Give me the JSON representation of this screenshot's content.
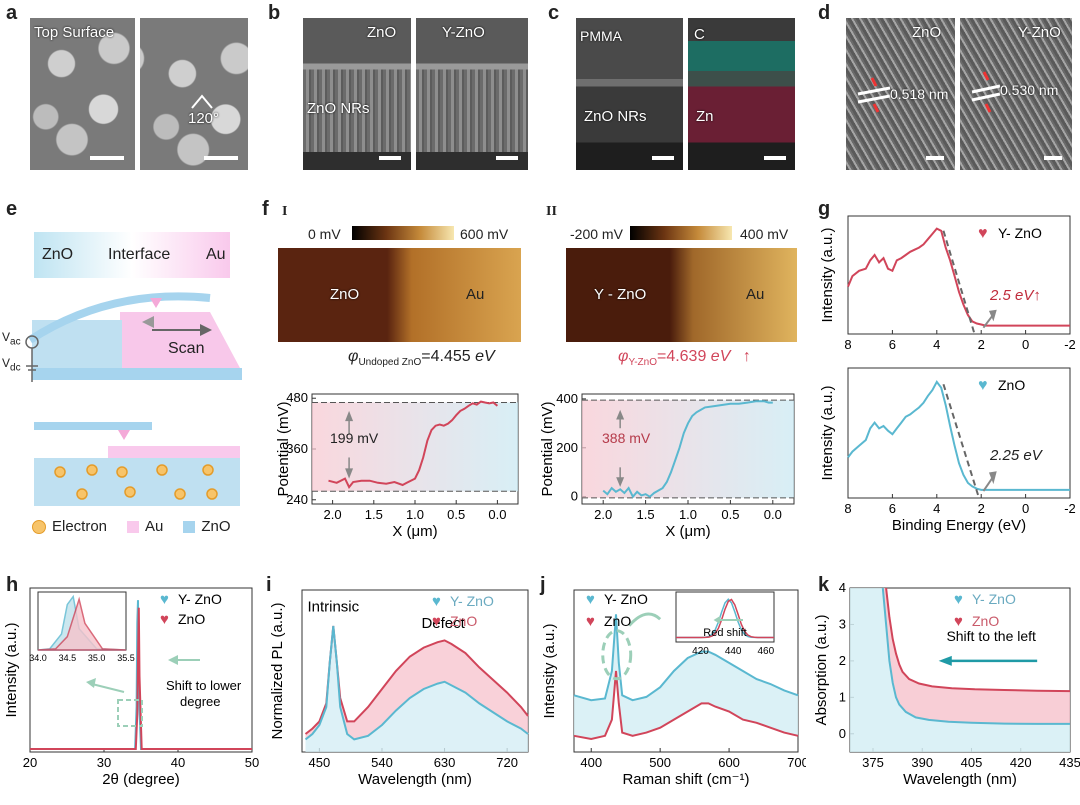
{
  "panel_labels": {
    "a": "a",
    "b": "b",
    "c": "c",
    "d": "d",
    "e": "e",
    "f": "f",
    "g": "g",
    "h": "h",
    "i": "i",
    "j": "j",
    "k": "k"
  },
  "panel_a": {
    "label_top_surface": "Top Surface",
    "angle": "120°"
  },
  "panel_b": {
    "label_zno": "ZnO",
    "label_yzno": "Y-ZnO",
    "label_nrs": "ZnO NRs"
  },
  "panel_c": {
    "label_pmma": "PMMA",
    "label_c": "C",
    "label_nrs": "ZnO NRs",
    "label_zn": "Zn"
  },
  "panel_d": {
    "label_zno": "ZnO",
    "label_yzno": "Y-ZnO",
    "spacing_zno": "0.518 nm",
    "spacing_yzno": "0.530 nm"
  },
  "panel_e": {
    "band_zno": "ZnO",
    "band_interface": "Interface",
    "band_au": "Au",
    "vac": "V",
    "vac_sub": "ac",
    "vdc": "V",
    "vdc_sub": "dc",
    "scan": "Scan",
    "legend_electron": "Electron",
    "legend_au": "Au",
    "legend_zno": "ZnO"
  },
  "panel_f": {
    "sub1": "I",
    "sub2": "II",
    "cb1_min": "0 mV",
    "cb1_max": "600 mV",
    "cb2_min": "-200 mV",
    "cb2_max": "400 mV",
    "map1_left": "ZnO",
    "map1_right": "Au",
    "map2_left": "Y - ZnO",
    "map2_right": "Au",
    "phi1_sym": "φ",
    "phi1_sub": "Undoped ZnO",
    "phi1_val": "=4.455 ",
    "phi1_unit": "eV",
    "phi2_sym": "φ",
    "phi2_sub": "Y-ZnO",
    "phi2_val": "=4.639 ",
    "phi2_unit": "eV",
    "phi2_arrow": "↑",
    "ylabel": "Potential (mV)",
    "xlabel": "X (μm)",
    "annot1": "199 mV",
    "annot2": "388 mV",
    "accent_red": "#d1455a",
    "accent_teal": "#5ab8d0"
  },
  "panel_g": {
    "legend_top": "Y- ZnO",
    "legend_bottom": "ZnO",
    "annot_top": "2.5 eV↑",
    "annot_bottom": "2.25 eV",
    "ylabel": "Intensity (a.u.)",
    "xlabel": "Binding Energy (eV)",
    "heart": "♥"
  },
  "panel_h": {
    "legend1": "Y- ZnO",
    "legend2": "ZnO",
    "annot": "Shift to lower degree",
    "annot_line1": "Shift to lower",
    "annot_line2": "degree",
    "ylabel": "Intensity (a.u.)",
    "xlabel": "2θ (degree)",
    "heart": "♥"
  },
  "panel_i": {
    "legend1": "Y- ZnO",
    "legend2": "ZnO",
    "annot_intrinsic": "Intrinsic",
    "annot_defect": "Defect",
    "ylabel": "Normalized PL (a.u.)",
    "xlabel": "Wavelength (nm)",
    "heart": "♥"
  },
  "panel_j": {
    "legend1": "Y- ZnO",
    "legend2": "ZnO",
    "annot_red": "Red shift",
    "ylabel": "Intensity (a.u.)",
    "xlabel_main": "Raman shift (cm",
    "xlabel_sup": "-1",
    "xlabel_end": ")",
    "heart": "♥"
  },
  "panel_k": {
    "legend1": "Y- ZnO",
    "legend2": "ZnO",
    "annot": "Shift to the left",
    "ylabel": "Absorption (a.u.)",
    "xlabel": "Wavelength (nm)",
    "heart": "♥"
  },
  "chart_data": [
    {
      "id": "f1",
      "type": "line",
      "title": "",
      "xlabel": "X (μm)",
      "ylabel": "Potential (mV)",
      "xlim": [
        2.25,
        -0.25
      ],
      "ylim": [
        230,
        490
      ],
      "xticks": [
        2.0,
        1.5,
        1.0,
        0.5,
        0.0
      ],
      "yticks": [
        240,
        360,
        480
      ],
      "series": [
        {
          "name": "Undoped ZnO",
          "x": [
            2.05,
            1.95,
            1.85,
            1.8,
            1.75,
            1.65,
            1.55,
            1.45,
            1.35,
            1.25,
            1.15,
            1.1,
            1.0,
            0.95,
            0.9,
            0.85,
            0.8,
            0.75,
            0.7,
            0.65,
            0.6,
            0.55,
            0.5,
            0.45,
            0.4,
            0.35,
            0.3,
            0.25,
            0.2,
            0.15,
            0.1,
            0.05,
            0.0
          ],
          "values": [
            285,
            280,
            290,
            270,
            282,
            285,
            285,
            280,
            278,
            282,
            275,
            280,
            290,
            310,
            340,
            380,
            405,
            415,
            418,
            415,
            420,
            428,
            440,
            450,
            455,
            462,
            468,
            465,
            472,
            470,
            468,
            470,
            462
          ]
        }
      ],
      "annotations": [
        "199 mV"
      ]
    },
    {
      "id": "f2",
      "type": "line",
      "title": "",
      "xlabel": "X (μm)",
      "ylabel": "Potential (mV)",
      "xlim": [
        2.25,
        -0.25
      ],
      "ylim": [
        -30,
        420
      ],
      "xticks": [
        2.0,
        1.5,
        1.0,
        0.5,
        0.0
      ],
      "yticks": [
        0,
        200,
        400
      ],
      "series": [
        {
          "name": "Y-ZnO",
          "x": [
            2.0,
            1.95,
            1.9,
            1.85,
            1.8,
            1.75,
            1.7,
            1.65,
            1.6,
            1.55,
            1.5,
            1.45,
            1.4,
            1.3,
            1.25,
            1.2,
            1.15,
            1.1,
            1.05,
            1.0,
            0.95,
            0.9,
            0.85,
            0.8,
            0.7,
            0.6,
            0.5,
            0.4,
            0.3,
            0.2,
            0.1,
            0.05,
            0.0
          ],
          "values": [
            25,
            10,
            35,
            20,
            30,
            15,
            35,
            0,
            20,
            5,
            10,
            0,
            15,
            35,
            60,
            100,
            150,
            200,
            260,
            300,
            330,
            345,
            355,
            365,
            370,
            375,
            380,
            380,
            385,
            390,
            390,
            385,
            385
          ]
        }
      ],
      "annotations": [
        "388 mV"
      ]
    },
    {
      "id": "g_top",
      "type": "line",
      "xlabel": "Binding Energy (eV)",
      "ylabel": "Intensity (a.u.)",
      "xlim": [
        8,
        -2
      ],
      "xticks": [
        8,
        6,
        4,
        2,
        0,
        -2
      ],
      "series": [
        {
          "name": "Y- ZnO",
          "x": [
            8,
            7.8,
            7.5,
            7.2,
            7,
            6.8,
            6.6,
            6.4,
            6.2,
            6,
            5.8,
            5.6,
            5.4,
            5.2,
            5,
            4.8,
            4.6,
            4.4,
            4.2,
            4,
            3.8,
            3.6,
            3.4,
            3.2,
            3,
            2.8,
            2.6,
            2.4,
            2.2,
            2,
            1.8,
            1.5,
            1,
            0.5,
            0,
            -0.5,
            -1,
            -1.5,
            -2
          ],
          "values": [
            0.45,
            0.55,
            0.6,
            0.62,
            0.7,
            0.75,
            0.68,
            0.72,
            0.62,
            0.6,
            0.7,
            0.72,
            0.75,
            0.78,
            0.8,
            0.82,
            0.85,
            0.9,
            0.95,
            1.0,
            0.98,
            0.82,
            0.7,
            0.55,
            0.4,
            0.28,
            0.18,
            0.12,
            0.1,
            0.09,
            0.08,
            0.08,
            0.08,
            0.08,
            0.08,
            0.08,
            0.08,
            0.08,
            0.08
          ]
        }
      ],
      "annotations": [
        "2.5 eV↑"
      ]
    },
    {
      "id": "g_bottom",
      "type": "line",
      "xlabel": "Binding Energy (eV)",
      "ylabel": "Intensity (a.u.)",
      "xlim": [
        8,
        -2
      ],
      "xticks": [
        8,
        6,
        4,
        2,
        0,
        -2
      ],
      "series": [
        {
          "name": "ZnO",
          "x": [
            8,
            7.8,
            7.5,
            7.2,
            7,
            6.8,
            6.6,
            6.4,
            6.2,
            6,
            5.8,
            5.6,
            5.4,
            5.2,
            5,
            4.8,
            4.6,
            4.4,
            4.2,
            4,
            3.8,
            3.6,
            3.4,
            3.2,
            3,
            2.8,
            2.6,
            2.4,
            2.2,
            2,
            1.8,
            1.5,
            1,
            0.5,
            0,
            -0.5,
            -1,
            -1.5,
            -2
          ],
          "values": [
            0.35,
            0.4,
            0.45,
            0.5,
            0.6,
            0.65,
            0.6,
            0.62,
            0.58,
            0.55,
            0.6,
            0.65,
            0.7,
            0.72,
            0.75,
            0.78,
            0.82,
            0.88,
            0.93,
            1.0,
            0.95,
            0.8,
            0.62,
            0.45,
            0.3,
            0.2,
            0.13,
            0.1,
            0.08,
            0.07,
            0.07,
            0.07,
            0.07,
            0.07,
            0.07,
            0.07,
            0.07,
            0.07,
            0.07
          ]
        }
      ],
      "annotations": [
        "2.25 eV"
      ]
    },
    {
      "id": "h",
      "type": "line",
      "xlabel": "2θ (degree)",
      "ylabel": "Intensity (a.u.)",
      "xlim": [
        20,
        50
      ],
      "xticks": [
        20,
        30,
        40,
        50
      ],
      "series": [
        {
          "name": "Y- ZnO",
          "x": [
            20,
            34.2,
            34.4,
            34.5,
            34.6,
            34.7,
            35,
            50
          ],
          "values": [
            0.02,
            0.02,
            0.3,
            0.85,
            1.0,
            0.4,
            0.02,
            0.02
          ]
        },
        {
          "name": "ZnO",
          "x": [
            20,
            34.3,
            34.5,
            34.6,
            34.7,
            34.8,
            35.1,
            50
          ],
          "values": [
            0.02,
            0.02,
            0.25,
            0.6,
            0.95,
            0.5,
            0.02,
            0.02
          ]
        }
      ],
      "inset": {
        "xlim": [
          34.0,
          35.5
        ],
        "xticks": [
          34.0,
          34.5,
          35.0,
          35.5
        ]
      },
      "annotations": [
        "Shift to lower degree"
      ]
    },
    {
      "id": "i",
      "type": "line",
      "xlabel": "Wavelength (nm)",
      "ylabel": "Normalized PL (a.u.)",
      "xlim": [
        425,
        750
      ],
      "xticks": [
        450,
        540,
        630,
        720
      ],
      "series": [
        {
          "name": "Y- ZnO",
          "x": [
            430,
            440,
            450,
            460,
            465,
            470,
            475,
            480,
            490,
            500,
            520,
            540,
            560,
            580,
            600,
            620,
            630,
            640,
            660,
            680,
            700,
            720,
            740,
            750
          ],
          "values": [
            0.12,
            0.15,
            0.2,
            0.3,
            0.55,
            0.75,
            0.55,
            0.3,
            0.15,
            0.12,
            0.14,
            0.2,
            0.28,
            0.35,
            0.4,
            0.43,
            0.44,
            0.42,
            0.38,
            0.32,
            0.27,
            0.22,
            0.18,
            0.15
          ]
        },
        {
          "name": "ZnO",
          "x": [
            430,
            440,
            450,
            460,
            465,
            470,
            475,
            480,
            490,
            500,
            520,
            540,
            560,
            580,
            600,
            620,
            630,
            640,
            660,
            680,
            700,
            720,
            740,
            750
          ],
          "values": [
            0.15,
            0.18,
            0.22,
            0.32,
            0.55,
            0.75,
            0.55,
            0.35,
            0.22,
            0.22,
            0.3,
            0.4,
            0.5,
            0.58,
            0.63,
            0.66,
            0.67,
            0.65,
            0.6,
            0.52,
            0.45,
            0.38,
            0.3,
            0.25
          ]
        }
      ],
      "annotations": [
        "Intrinsic",
        "Defect"
      ]
    },
    {
      "id": "j",
      "type": "line",
      "xlabel": "Raman shift (cm-1)",
      "ylabel": "Intensity (a.u.)",
      "xlim": [
        375,
        700
      ],
      "xticks": [
        400,
        500,
        600,
        700
      ],
      "series": [
        {
          "name": "Y- ZnO",
          "x": [
            375,
            400,
            420,
            430,
            436,
            440,
            445,
            460,
            480,
            500,
            520,
            540,
            560,
            570,
            580,
            600,
            620,
            640,
            660,
            680,
            700
          ],
          "values": [
            0.35,
            0.32,
            0.33,
            0.5,
            0.85,
            0.55,
            0.35,
            0.32,
            0.34,
            0.4,
            0.5,
            0.58,
            0.62,
            0.62,
            0.6,
            0.55,
            0.5,
            0.45,
            0.42,
            0.38,
            0.35
          ]
        },
        {
          "name": "ZnO",
          "x": [
            375,
            400,
            420,
            430,
            436,
            440,
            445,
            460,
            480,
            500,
            520,
            540,
            560,
            570,
            580,
            600,
            620,
            640,
            660,
            680,
            700
          ],
          "values": [
            0.1,
            0.08,
            0.1,
            0.2,
            0.5,
            0.3,
            0.12,
            0.1,
            0.12,
            0.15,
            0.2,
            0.25,
            0.3,
            0.3,
            0.28,
            0.25,
            0.2,
            0.18,
            0.15,
            0.12,
            0.1
          ]
        }
      ],
      "inset": {
        "xlim": [
          405,
          465
        ],
        "xticks": [
          420,
          440,
          460
        ]
      },
      "annotations": [
        "Red shift"
      ]
    },
    {
      "id": "k",
      "type": "line",
      "xlabel": "Wavelength (nm)",
      "ylabel": "Absorption (a.u.)",
      "xlim": [
        368,
        435
      ],
      "ylim": [
        -0.5,
        4
      ],
      "xticks": [
        375,
        390,
        405,
        420,
        435
      ],
      "yticks": [
        0,
        1,
        2,
        3,
        4
      ],
      "series": [
        {
          "name": "Y- ZnO",
          "x": [
            378,
            379,
            380,
            381,
            382,
            383,
            385,
            388,
            392,
            398,
            405,
            415,
            425,
            435
          ],
          "values": [
            4,
            3.0,
            2.0,
            1.4,
            1.0,
            0.8,
            0.6,
            0.45,
            0.38,
            0.33,
            0.3,
            0.28,
            0.27,
            0.27
          ]
        },
        {
          "name": "ZnO",
          "x": [
            379,
            380,
            381,
            382,
            383,
            384,
            386,
            389,
            393,
            399,
            406,
            415,
            425,
            435
          ],
          "values": [
            4,
            3.2,
            2.6,
            2.2,
            1.9,
            1.7,
            1.5,
            1.38,
            1.3,
            1.25,
            1.22,
            1.2,
            1.18,
            1.17
          ]
        }
      ],
      "annotations": [
        "Shift to the left"
      ]
    }
  ]
}
